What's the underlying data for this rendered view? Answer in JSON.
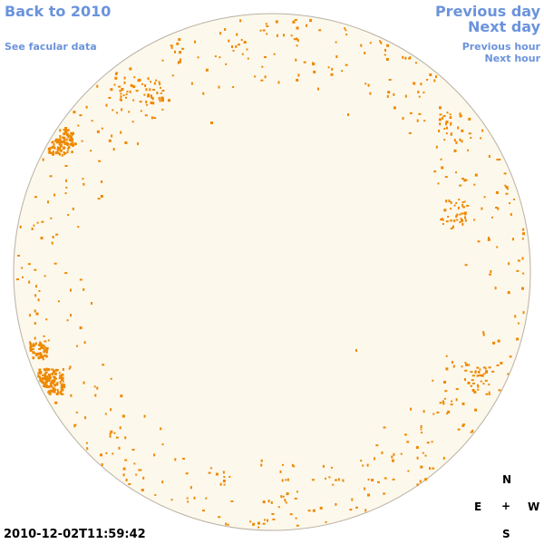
{
  "nav": {
    "back": "Back to 2010",
    "facular": "See facular data",
    "previous_day": "Previous day",
    "next_day": "Next day",
    "previous_hour": "Previous hour",
    "next_hour": "Next hour"
  },
  "compass": {
    "north": "N",
    "east": "E",
    "center": "+",
    "west": "W",
    "south": "S"
  },
  "timestamp": "2010-12-02T11:59:42",
  "colors": {
    "link": "#6b93dc",
    "disk_fill": "#fdf8ec",
    "disk_stroke": "#b9b1a3",
    "spot": "#ee8800"
  }
}
